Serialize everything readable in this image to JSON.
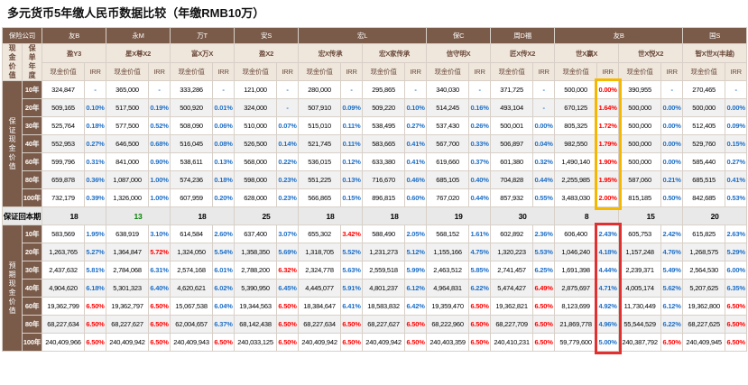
{
  "title": "多元货币5年缴人民币数据比较（年缴RMB10万）",
  "header": {
    "company_label": "保险公司",
    "cash_value": "现金价值",
    "policy_year": "保单年度",
    "value_label": "现金价值",
    "irr_label": "IRR",
    "companies": [
      {
        "name": "友B",
        "products": [
          "盈Y3"
        ]
      },
      {
        "name": "永M",
        "products": [
          "星X尊X2"
        ]
      },
      {
        "name": "万T",
        "products": [
          "富X万X"
        ]
      },
      {
        "name": "安S",
        "products": [
          "盈X2"
        ]
      },
      {
        "name": "宏L",
        "products": [
          "宏X传承",
          "宏X家传承"
        ]
      },
      {
        "name": "保C",
        "products": [
          "信守明X"
        ]
      },
      {
        "name": "周D福",
        "products": [
          "匠X传X2"
        ]
      },
      {
        "name": "友B",
        "products": [
          "世X赢X",
          "世X悦X2"
        ]
      },
      {
        "name": "国S",
        "products": [
          "智X世X(丰越)"
        ]
      }
    ]
  },
  "sections": [
    {
      "label": "保证现金价值",
      "rows": [
        {
          "year": "10年",
          "cells": [
            "324,847",
            "-",
            "365,000",
            "-",
            "333,286",
            "-",
            "121,000",
            "-",
            "280,000",
            "-",
            "295,865",
            "-",
            "340,030",
            "-",
            "371,725",
            "-",
            "500,000",
            {
              "text": "0.00%",
              "color": "red"
            },
            "390,955",
            "-",
            "270,465",
            "-"
          ]
        },
        {
          "year": "20年",
          "cells": [
            "509,165",
            "0.10%",
            "517,500",
            "0.19%",
            "500,920",
            "0.01%",
            "324,000",
            "-",
            "507,910",
            "0.09%",
            "509,220",
            "0.10%",
            "514,245",
            "0.16%",
            "493,104",
            "-",
            "670,125",
            {
              "text": "1.64%",
              "color": "red"
            },
            "500,000",
            "0.00%",
            "500,000",
            "0.00%"
          ]
        },
        {
          "year": "30年",
          "cells": [
            "525,764",
            "0.18%",
            "577,500",
            "0.52%",
            "508,090",
            "0.06%",
            "510,000",
            "0.07%",
            "515,010",
            "0.11%",
            "538,495",
            "0.27%",
            "537,430",
            "0.26%",
            "500,001",
            "0.00%",
            "805,325",
            {
              "text": "1.72%",
              "color": "red"
            },
            "500,000",
            "0.00%",
            "512,405",
            "0.09%"
          ]
        },
        {
          "year": "40年",
          "cells": [
            "552,953",
            "0.27%",
            "646,500",
            "0.68%",
            "516,045",
            "0.08%",
            "526,500",
            "0.14%",
            "521,745",
            "0.11%",
            "583,665",
            "0.41%",
            "567,700",
            "0.33%",
            "506,897",
            "0.04%",
            "982,550",
            {
              "text": "1.79%",
              "color": "red"
            },
            "500,000",
            "0.00%",
            "529,760",
            "0.15%"
          ]
        },
        {
          "year": "60年",
          "cells": [
            "599,796",
            "0.31%",
            "841,000",
            "0.90%",
            "538,611",
            "0.13%",
            "568,000",
            "0.22%",
            "536,015",
            "0.12%",
            "633,380",
            "0.41%",
            "619,660",
            "0.37%",
            "601,380",
            "0.32%",
            "1,490,140",
            {
              "text": "1.90%",
              "color": "red"
            },
            "500,000",
            "0.00%",
            "585,440",
            "0.27%"
          ]
        },
        {
          "year": "80年",
          "cells": [
            "659,878",
            "0.36%",
            "1,087,000",
            "1.00%",
            "574,236",
            "0.18%",
            "598,000",
            "0.23%",
            "551,225",
            "0.13%",
            "716,670",
            "0.46%",
            "685,105",
            "0.40%",
            "704,828",
            "0.44%",
            "2,255,985",
            {
              "text": "1.95%",
              "color": "red"
            },
            "587,060",
            "0.21%",
            "685,515",
            "0.41%"
          ]
        },
        {
          "year": "100年",
          "cells": [
            "732,179",
            "0.39%",
            "1,326,000",
            "1.00%",
            "607,959",
            "0.20%",
            "628,000",
            "0.23%",
            "566,865",
            "0.15%",
            "896,815",
            "0.60%",
            "767,020",
            "0.44%",
            "857,932",
            "0.55%",
            "3,483,030",
            {
              "text": "2.00%",
              "color": "red"
            },
            "815,185",
            "0.50%",
            "842,685",
            "0.53%"
          ]
        }
      ]
    },
    {
      "label": "预期现金价值",
      "rows": [
        {
          "year": "10年",
          "cells": [
            "583,569",
            "1.95%",
            "638,919",
            "3.10%",
            "614,584",
            "2.60%",
            "637,400",
            "3.07%",
            "655,302",
            {
              "text": "3.42%",
              "color": "red"
            },
            "588,490",
            "2.05%",
            "568,152",
            "1.61%",
            "602,892",
            "2.36%",
            "606,400",
            "2.43%",
            "605,753",
            "2.42%",
            "615,825",
            "2.63%"
          ]
        },
        {
          "year": "20年",
          "cells": [
            "1,263,765",
            "5.27%",
            "1,364,847",
            {
              "text": "5.72%",
              "color": "red"
            },
            "1,324,050",
            "5.54%",
            "1,358,350",
            "5.69%",
            "1,318,705",
            "5.52%",
            "1,231,273",
            "5.12%",
            "1,155,166",
            "4.75%",
            "1,320,223",
            "5.53%",
            "1,046,240",
            "4.18%",
            "1,157,248",
            "4.76%",
            "1,268,575",
            "5.29%"
          ]
        },
        {
          "year": "30年",
          "cells": [
            "2,437,632",
            "5.81%",
            "2,784,068",
            "6.31%",
            "2,574,168",
            "6.01%",
            "2,788,200",
            {
              "text": "6.32%",
              "color": "red"
            },
            "2,324,778",
            "5.63%",
            "2,559,518",
            "5.99%",
            "2,463,512",
            "5.85%",
            "2,741,457",
            "6.25%",
            "1,691,398",
            "4.44%",
            "2,239,371",
            "5.49%",
            "2,564,530",
            "6.00%"
          ]
        },
        {
          "year": "40年",
          "cells": [
            "4,904,620",
            "6.18%",
            "5,301,323",
            "6.40%",
            "4,620,621",
            "6.02%",
            "5,390,950",
            "6.45%",
            "4,445,077",
            "5.91%",
            "4,801,237",
            "6.12%",
            "4,964,831",
            "6.22%",
            "5,474,427",
            {
              "text": "6.49%",
              "color": "red"
            },
            "2,875,697",
            "4.71%",
            "4,005,174",
            "5.62%",
            "5,207,625",
            "6.35%"
          ]
        },
        {
          "year": "60年",
          "cells": [
            "19,362,799",
            {
              "text": "6.50%",
              "color": "red"
            },
            "19,362,797",
            {
              "text": "6.50%",
              "color": "red"
            },
            "15,067,538",
            "6.04%",
            "19,344,563",
            {
              "text": "6.50%",
              "color": "red"
            },
            "18,384,647",
            "6.41%",
            "18,583,832",
            "6.42%",
            "19,359,470",
            {
              "text": "6.50%",
              "color": "red"
            },
            "19,362,821",
            {
              "text": "6.50%",
              "color": "red"
            },
            "8,123,699",
            "4.92%",
            "11,730,449",
            "6.12%",
            "19,362,800",
            {
              "text": "6.50%",
              "color": "red"
            }
          ]
        },
        {
          "year": "80年",
          "cells": [
            "68,227,634",
            {
              "text": "6.50%",
              "color": "red"
            },
            "68,227,627",
            {
              "text": "6.50%",
              "color": "red"
            },
            "62,004,657",
            "6.37%",
            "68,142,438",
            {
              "text": "6.50%",
              "color": "red"
            },
            "68,227,634",
            {
              "text": "6.50%",
              "color": "red"
            },
            "68,227,627",
            {
              "text": "6.50%",
              "color": "red"
            },
            "68,222,960",
            {
              "text": "6.50%",
              "color": "red"
            },
            "68,227,709",
            {
              "text": "6.50%",
              "color": "red"
            },
            "21,869,778",
            "4.96%",
            "55,544,529",
            "6.22%",
            "68,227,625",
            {
              "text": "6.50%",
              "color": "red"
            }
          ]
        },
        {
          "year": "100年",
          "cells": [
            "240,409,966",
            {
              "text": "6.50%",
              "color": "red"
            },
            "240,409,942",
            {
              "text": "6.50%",
              "color": "red"
            },
            "240,409,943",
            {
              "text": "6.50%",
              "color": "red"
            },
            "240,033,125",
            {
              "text": "6.50%",
              "color": "red"
            },
            "240,409,942",
            {
              "text": "6.50%",
              "color": "red"
            },
            "240,409,942",
            {
              "text": "6.50%",
              "color": "red"
            },
            "240,403,359",
            {
              "text": "6.50%",
              "color": "red"
            },
            "240,410,231",
            {
              "text": "6.50%",
              "color": "red"
            },
            "59,779,600",
            "5.00%",
            "240,387,792",
            {
              "text": "6.50%",
              "color": "red"
            },
            "240,409,945",
            {
              "text": "6.50%",
              "color": "red"
            }
          ]
        }
      ]
    }
  ],
  "breakeven": {
    "label": "保证回本期",
    "values": [
      18,
      {
        "value": 13,
        "color": "green"
      },
      18,
      25,
      18,
      18,
      19,
      30,
      8,
      15,
      20
    ]
  }
}
